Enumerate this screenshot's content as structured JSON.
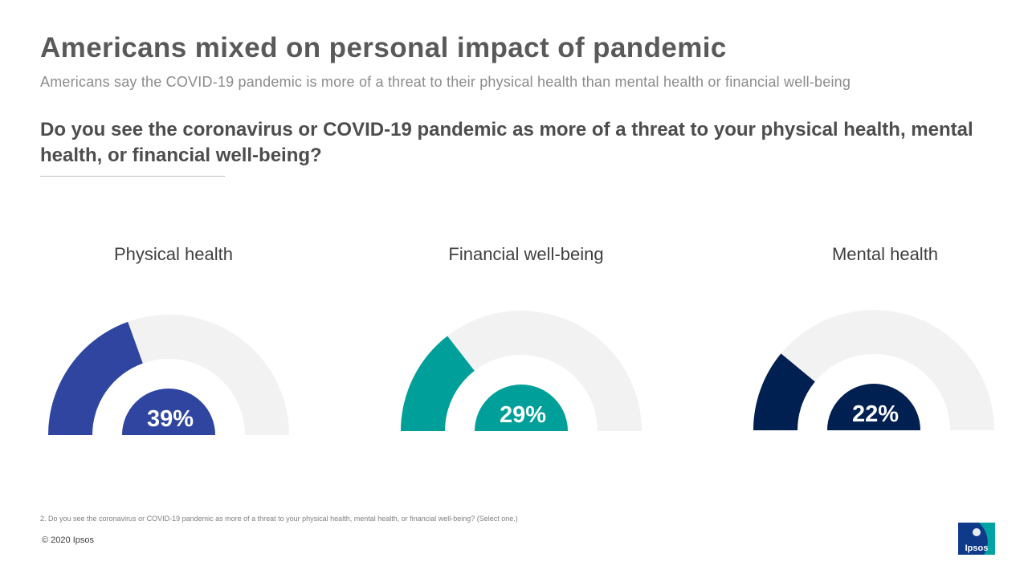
{
  "title": "Americans mixed on personal impact of pandemic",
  "subtitle": "Americans say the COVID-19 pandemic is more of a threat to their physical health than mental health or financial well-being",
  "question": "Do you see the coronavirus or COVID-19 pandemic as more of a threat to your physical health, mental health, or financial well-being?",
  "footnote": "2. Do you see the coronavirus or COVID-19 pandemic as more of a threat to your physical health, mental health, or financial well-being? (Select one.)",
  "copyright": "© 2020 Ipsos",
  "logo": {
    "text": "Ipsos",
    "color_blue": "#0f3a8a",
    "color_teal": "#00a3a1"
  },
  "chart_data": {
    "type": "gauge",
    "unit": "%",
    "max": 100,
    "track_color": "#f2f2f2",
    "series": [
      {
        "name": "Physical health",
        "value": 39,
        "label": "39%",
        "color": "#2f45a0"
      },
      {
        "name": "Financial well-being",
        "value": 29,
        "label": "29%",
        "color": "#009f9a"
      },
      {
        "name": "Mental health",
        "value": 22,
        "label": "22%",
        "color": "#002052"
      }
    ]
  }
}
